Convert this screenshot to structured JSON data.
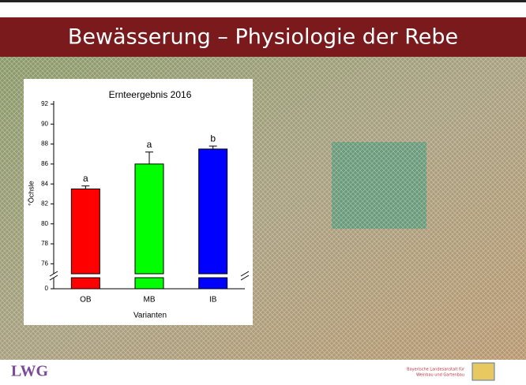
{
  "slide": {
    "title": "Bewässerung – Physiologie der Rebe",
    "logo": "LWG",
    "institution": [
      "Bayerische Landesanstalt für",
      "Weinbau und Gartenbau"
    ]
  },
  "chart_data": {
    "type": "bar",
    "title": "Ernteergebnis 2016",
    "x_label": "Varianten",
    "y_label": "°Öchsle",
    "categories": [
      "OB",
      "MB",
      "IB"
    ],
    "values": [
      83.5,
      86,
      87.5
    ],
    "errors": [
      0.3,
      1.2,
      0.3
    ],
    "annotations": [
      "a",
      "a",
      "b"
    ],
    "colors": [
      "#ff0000",
      "#00ff00",
      "#0000ff"
    ],
    "ylim": [
      75,
      92
    ],
    "yticks": [
      76,
      78,
      80,
      82,
      84,
      86,
      88,
      90,
      92
    ],
    "lower_ylim": [
      0,
      1.2
    ],
    "lower_yticks": [
      0
    ]
  }
}
